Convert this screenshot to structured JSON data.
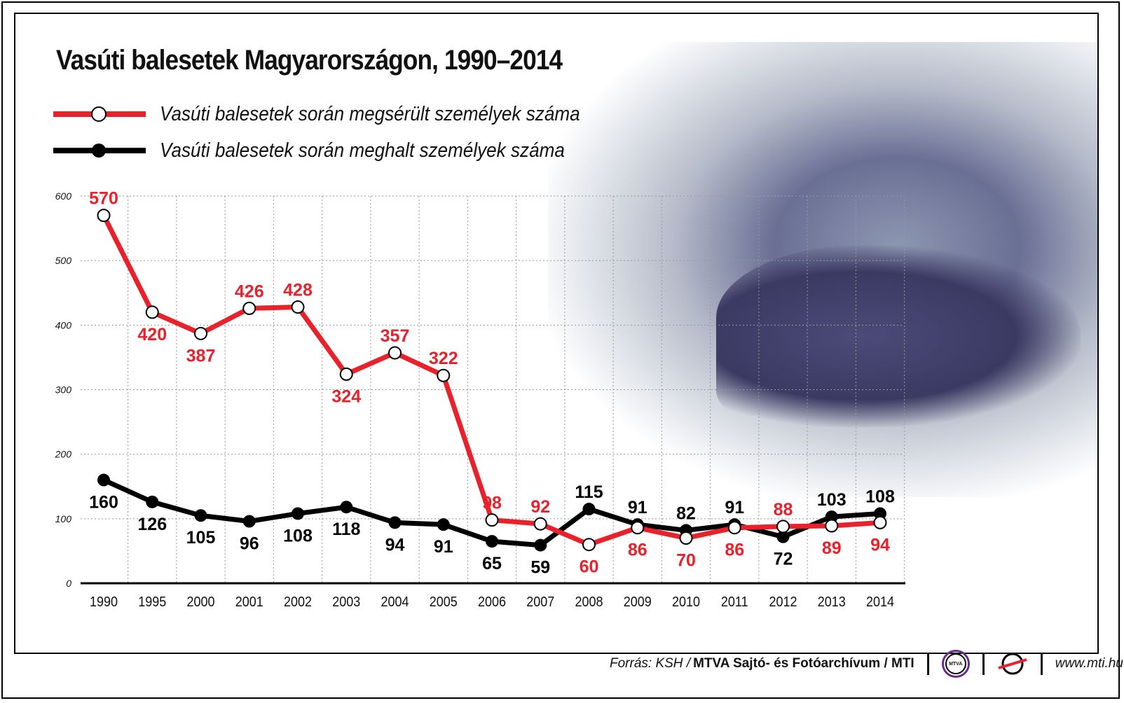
{
  "colors": {
    "injured": "#e8212b",
    "killed": "#000000"
  },
  "chart_data": {
    "type": "line",
    "title": "Vasúti balesetek Magyarországon, 1990–2014",
    "categories": [
      "1990",
      "1995",
      "2000",
      "2001",
      "2002",
      "2003",
      "2004",
      "2005",
      "2006",
      "2007",
      "2008",
      "2009",
      "2010",
      "2011",
      "2012",
      "2013",
      "2014"
    ],
    "series": [
      {
        "name": "Vasúti balesetek során megsérült személyek száma",
        "color": "#e8212b",
        "marker": "open-circle",
        "values": [
          570,
          420,
          387,
          426,
          428,
          324,
          357,
          322,
          98,
          92,
          60,
          86,
          70,
          86,
          88,
          89,
          94
        ]
      },
      {
        "name": "Vasúti balesetek során meghalt személyek száma",
        "color": "#000000",
        "marker": "filled-circle",
        "values": [
          160,
          126,
          105,
          96,
          108,
          118,
          94,
          91,
          65,
          59,
          115,
          91,
          82,
          91,
          72,
          103,
          108
        ]
      }
    ],
    "ylim": [
      0,
      600
    ],
    "yticks": [
      "0",
      "100",
      "200",
      "300",
      "400",
      "500",
      "600"
    ],
    "grid": true,
    "legend": "top-left"
  },
  "footer": {
    "source_prefix": "Forrás: KSH / ",
    "source_bold": "MTVA Sajtó- és Fotóarchívum / MTI",
    "logo_text": "MTVA",
    "url": "www.mti.hu"
  }
}
